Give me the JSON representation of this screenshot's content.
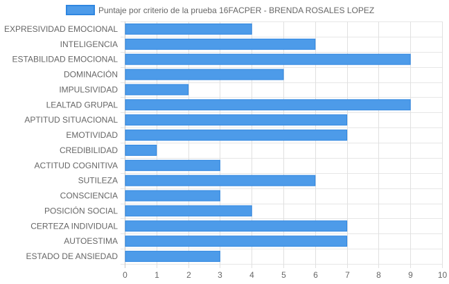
{
  "chart_data": {
    "type": "bar",
    "orientation": "horizontal",
    "categories": [
      "EXPRESIVIDAD EMOCIONAL",
      "INTELIGENCIA",
      "ESTABILIDAD EMOCIONAL",
      "DOMINACIÓN",
      "IMPULSIVIDAD",
      "LEALTAD GRUPAL",
      "APTITUD SITUACIONAL",
      "EMOTIVIDAD",
      "CREDIBILIDAD",
      "ACTITUD COGNITIVA",
      "SUTILEZA",
      "CONSCIENCIA",
      "POSICIÓN SOCIAL",
      "CERTEZA INDIVIDUAL",
      "AUTOESTIMA",
      "ESTADO DE ANSIEDAD"
    ],
    "series": [
      {
        "name": "Puntaje por criterio de la prueba 16FACPER - BRENDA ROSALES LOPEZ",
        "values": [
          4,
          6,
          9,
          5,
          2,
          9,
          7,
          7,
          1,
          3,
          6,
          3,
          4,
          7,
          7,
          3
        ],
        "color": "#4d9be9",
        "border_color": "#2f86e0"
      }
    ],
    "xlim": [
      0,
      10
    ],
    "x_ticks": [
      "0",
      "1",
      "2",
      "3",
      "4",
      "5",
      "6",
      "7",
      "8",
      "9",
      "10"
    ],
    "grid": true,
    "legend_position": "top"
  }
}
